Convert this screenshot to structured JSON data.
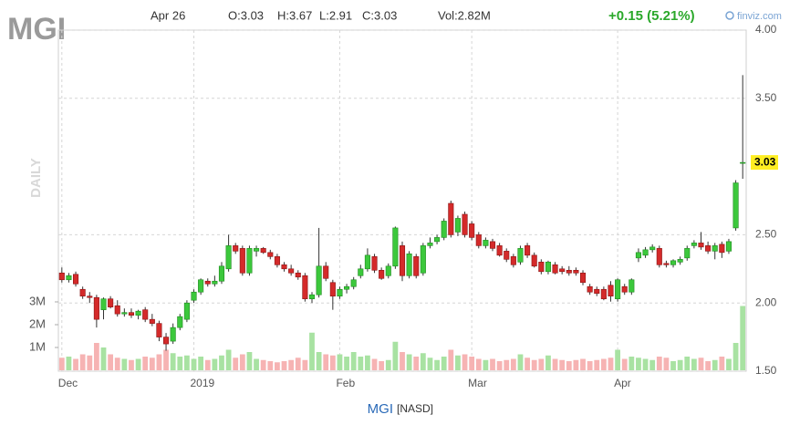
{
  "chart_data": {
    "type": "candlestick",
    "ticker": "MGI",
    "date": "Apr 26",
    "ohlc_labels": [
      "O:3.03",
      "H:3.67",
      "L:2.91",
      "C:3.03"
    ],
    "volume_label": "Vol:2.82M",
    "change": "+0.15 (5.21%)",
    "source": "finviz.com",
    "period": "DAILY",
    "footer_ticker": "MGI",
    "exchange": "[NASD]",
    "up_color": "#3cc83c",
    "down_color": "#d42a2a",
    "up_volume_color": "#a8e2a2",
    "down_volume_color": "#f6b3b3",
    "categories": [
      "Dec",
      null,
      null,
      null,
      null,
      null,
      null,
      null,
      null,
      null,
      null,
      null,
      null,
      null,
      null,
      null,
      null,
      null,
      null,
      "2019",
      null,
      null,
      null,
      null,
      null,
      null,
      null,
      null,
      null,
      null,
      null,
      null,
      null,
      null,
      null,
      null,
      null,
      null,
      null,
      null,
      "Feb",
      null,
      null,
      null,
      null,
      null,
      null,
      null,
      null,
      null,
      null,
      null,
      null,
      null,
      null,
      null,
      null,
      null,
      null,
      "Mar",
      null,
      null,
      null,
      null,
      null,
      null,
      null,
      null,
      null,
      null,
      null,
      null,
      null,
      null,
      null,
      null,
      null,
      null,
      null,
      null,
      "Apr",
      null,
      null,
      null,
      null,
      null,
      null,
      null,
      null,
      null,
      null,
      null,
      null,
      null,
      null,
      null,
      null,
      null,
      null
    ],
    "open": [
      2.22,
      2.17,
      2.21,
      2.1,
      2.05,
      2.04,
      1.95,
      2.03,
      1.98,
      1.92,
      1.93,
      1.91,
      1.95,
      1.88,
      1.85,
      1.75,
      1.72,
      1.82,
      1.88,
      2.02,
      2.08,
      2.16,
      2.14,
      2.16,
      2.25,
      2.42,
      2.4,
      2.22,
      2.38,
      2.4,
      2.37,
      2.34,
      2.28,
      2.25,
      2.22,
      2.2,
      2.03,
      2.06,
      2.27,
      2.15,
      2.05,
      2.1,
      2.12,
      2.2,
      2.25,
      2.34,
      2.24,
      2.2,
      2.27,
      2.42,
      2.2,
      2.34,
      2.22,
      2.42,
      2.45,
      2.48,
      2.73,
      2.52,
      2.65,
      2.58,
      2.5,
      2.42,
      2.45,
      2.42,
      2.38,
      2.34,
      2.3,
      2.42,
      2.35,
      2.3,
      2.23,
      2.28,
      2.25,
      2.24,
      2.24,
      2.22,
      2.12,
      2.1,
      2.1,
      2.13,
      2.03,
      2.12,
      2.08,
      2.33,
      2.35,
      2.39,
      2.4,
      2.29,
      2.28,
      2.3,
      2.33,
      2.42,
      2.44,
      2.42,
      2.38,
      2.43,
      2.38,
      2.55,
      3.03
    ],
    "high": [
      2.26,
      2.22,
      2.23,
      2.12,
      2.08,
      2.06,
      2.04,
      2.05,
      2.02,
      1.96,
      1.96,
      1.95,
      1.97,
      1.92,
      1.87,
      1.78,
      1.85,
      1.92,
      2.02,
      2.1,
      2.18,
      2.18,
      2.2,
      2.3,
      2.5,
      2.44,
      2.42,
      2.42,
      2.42,
      2.41,
      2.39,
      2.36,
      2.3,
      2.28,
      2.24,
      2.22,
      2.08,
      2.55,
      2.3,
      2.17,
      2.12,
      2.14,
      2.19,
      2.28,
      2.4,
      2.36,
      2.26,
      2.29,
      2.56,
      2.45,
      2.38,
      2.36,
      2.44,
      2.48,
      2.5,
      2.62,
      2.75,
      2.64,
      2.67,
      2.6,
      2.52,
      2.48,
      2.47,
      2.44,
      2.4,
      2.36,
      2.42,
      2.44,
      2.37,
      2.32,
      2.31,
      2.3,
      2.27,
      2.27,
      2.26,
      2.24,
      2.14,
      2.12,
      2.12,
      2.16,
      2.18,
      2.14,
      2.18,
      2.4,
      2.41,
      2.43,
      2.42,
      2.31,
      2.32,
      2.34,
      2.42,
      2.46,
      2.52,
      2.45,
      2.44,
      2.45,
      2.47,
      2.9,
      3.67
    ],
    "low": [
      2.15,
      2.15,
      2.12,
      2.03,
      2.0,
      1.82,
      1.88,
      1.96,
      1.9,
      1.9,
      1.89,
      1.88,
      1.86,
      1.83,
      1.72,
      1.65,
      1.7,
      1.8,
      1.86,
      2.0,
      2.06,
      2.12,
      2.12,
      2.14,
      2.23,
      2.36,
      2.2,
      2.2,
      2.34,
      2.36,
      2.32,
      2.26,
      2.23,
      2.2,
      2.17,
      2.01,
      2.0,
      2.04,
      2.16,
      1.95,
      2.03,
      2.07,
      2.1,
      2.18,
      2.23,
      2.22,
      2.17,
      2.18,
      2.25,
      2.16,
      2.18,
      2.18,
      2.2,
      2.4,
      2.43,
      2.46,
      2.48,
      2.49,
      2.48,
      2.46,
      2.4,
      2.4,
      2.38,
      2.34,
      2.3,
      2.26,
      2.28,
      2.33,
      2.26,
      2.21,
      2.21,
      2.21,
      2.21,
      2.2,
      2.2,
      2.13,
      2.06,
      2.05,
      2.02,
      2.01,
      2.01,
      2.06,
      2.06,
      2.3,
      2.33,
      2.37,
      2.26,
      2.26,
      2.26,
      2.28,
      2.31,
      2.4,
      2.39,
      2.36,
      2.32,
      2.33,
      2.36,
      2.53,
      2.91
    ],
    "close": [
      2.17,
      2.2,
      2.14,
      2.05,
      2.04,
      1.88,
      2.03,
      1.97,
      1.92,
      1.93,
      1.91,
      1.94,
      1.88,
      1.85,
      1.75,
      1.7,
      1.82,
      1.9,
      2.0,
      2.08,
      2.17,
      2.14,
      2.16,
      2.27,
      2.42,
      2.38,
      2.22,
      2.4,
      2.4,
      2.37,
      2.34,
      2.28,
      2.25,
      2.22,
      2.19,
      2.03,
      2.06,
      2.27,
      2.18,
      2.05,
      2.1,
      2.12,
      2.17,
      2.25,
      2.35,
      2.24,
      2.18,
      2.27,
      2.55,
      2.2,
      2.36,
      2.2,
      2.42,
      2.44,
      2.48,
      2.6,
      2.5,
      2.62,
      2.5,
      2.48,
      2.42,
      2.46,
      2.4,
      2.35,
      2.32,
      2.28,
      2.4,
      2.35,
      2.27,
      2.23,
      2.3,
      2.22,
      2.23,
      2.22,
      2.22,
      2.15,
      2.08,
      2.07,
      2.03,
      2.05,
      2.17,
      2.08,
      2.17,
      2.37,
      2.39,
      2.41,
      2.28,
      2.28,
      2.31,
      2.32,
      2.4,
      2.44,
      2.41,
      2.38,
      2.42,
      2.37,
      2.45,
      2.88,
      3.03
    ],
    "volume": [
      550000,
      600000,
      500000,
      700000,
      650000,
      1200000,
      1000000,
      700000,
      550000,
      500000,
      450000,
      500000,
      600000,
      550000,
      700000,
      900000,
      750000,
      600000,
      650000,
      500000,
      600000,
      450000,
      500000,
      650000,
      900000,
      550000,
      700000,
      800000,
      500000,
      450000,
      400000,
      350000,
      400000,
      450000,
      550000,
      450000,
      1650000,
      800000,
      700000,
      650000,
      700000,
      600000,
      800000,
      600000,
      650000,
      500000,
      400000,
      450000,
      1250000,
      800000,
      700000,
      600000,
      750000,
      550000,
      450000,
      600000,
      900000,
      650000,
      700000,
      600000,
      500000,
      450000,
      500000,
      400000,
      450000,
      500000,
      700000,
      550000,
      450000,
      500000,
      650000,
      500000,
      450000,
      400000,
      450000,
      500000,
      400000,
      450000,
      500000,
      550000,
      900000,
      500000,
      600000,
      550000,
      500000,
      450000,
      600000,
      550000,
      400000,
      450000,
      600000,
      500000,
      550000,
      400000,
      450000,
      600000,
      500000,
      1200000,
      2820000
    ],
    "ylim": [
      1.5,
      4.0
    ],
    "yticks": [
      {
        "value": 1.5,
        "label": "1.50"
      },
      {
        "value": 2,
        "label": "2.00"
      },
      {
        "value": 2.5,
        "label": "2.50"
      },
      {
        "value": 3.5,
        "label": "3.50"
      },
      {
        "value": 4,
        "label": "4.00"
      }
    ],
    "y2lim": [
      0,
      3000000
    ],
    "y2ticks": [
      {
        "value": 1000000,
        "label": "1M"
      },
      {
        "value": 2000000,
        "label": "2M"
      },
      {
        "value": 3000000,
        "label": "3M"
      }
    ],
    "grid": true
  }
}
